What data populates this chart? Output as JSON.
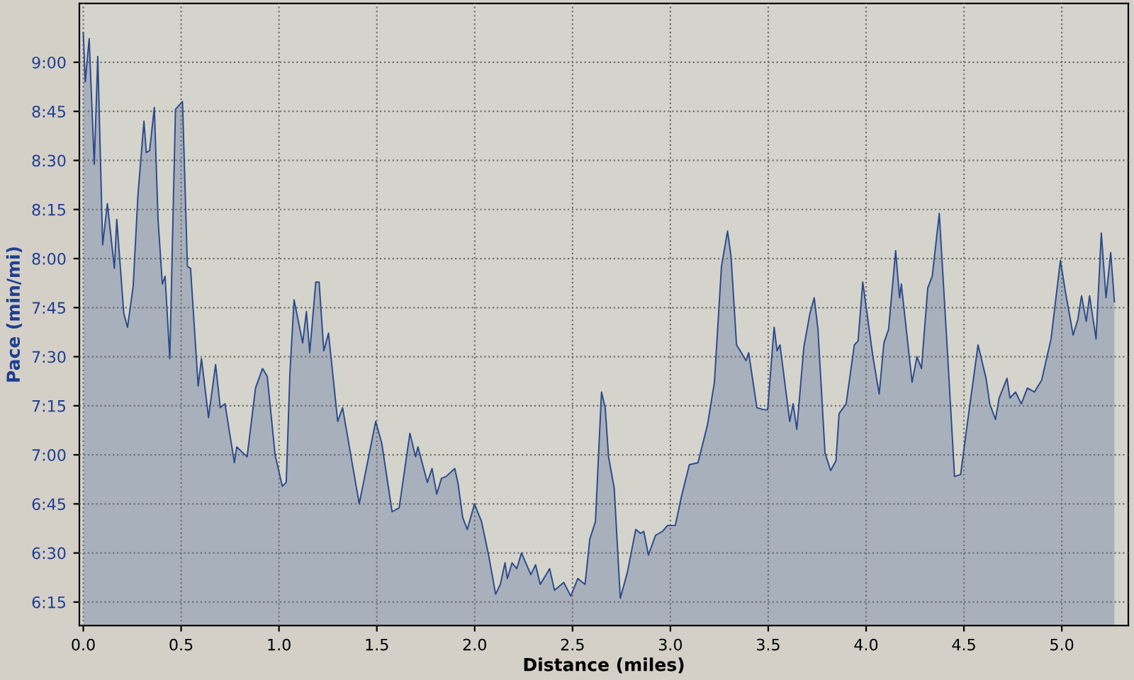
{
  "chart_data": {
    "type": "area",
    "xlabel": "Distance (miles)",
    "ylabel": "Pace (min/mi)",
    "series": [
      {
        "color": "#2c4a8a",
        "x": [
          0.0,
          0.01,
          0.03,
          0.056,
          0.074,
          0.099,
          0.123,
          0.159,
          0.171,
          0.207,
          0.226,
          0.255,
          0.279,
          0.31,
          0.322,
          0.339,
          0.363,
          0.382,
          0.404,
          0.418,
          0.442,
          0.471,
          0.507,
          0.532,
          0.548,
          0.587,
          0.604,
          0.64,
          0.676,
          0.7,
          0.724,
          0.772,
          0.784,
          0.837,
          0.88,
          0.916,
          0.94,
          0.98,
          1.017,
          1.037,
          1.056,
          1.077,
          1.121,
          1.14,
          1.157,
          1.188,
          1.205,
          1.229,
          1.253,
          1.3,
          1.325,
          1.41,
          1.494,
          1.525,
          1.578,
          1.614,
          1.669,
          1.698,
          1.71,
          1.758,
          1.782,
          1.806,
          1.83,
          1.854,
          1.898,
          1.914,
          1.939,
          1.962,
          1.999,
          2.035,
          2.071,
          2.107,
          2.131,
          2.155,
          2.167,
          2.191,
          2.215,
          2.239,
          2.287,
          2.311,
          2.335,
          2.383,
          2.408,
          2.455,
          2.491,
          2.527,
          2.564,
          2.588,
          2.617,
          2.648,
          2.667,
          2.684,
          2.713,
          2.744,
          2.78,
          2.823,
          2.848,
          2.864,
          2.888,
          2.924,
          2.96,
          2.985,
          3.025,
          3.057,
          3.097,
          3.141,
          3.189,
          3.225,
          3.261,
          3.292,
          3.31,
          3.338,
          3.357,
          3.386,
          3.4,
          3.442,
          3.477,
          3.497,
          3.53,
          3.545,
          3.56,
          3.61,
          3.627,
          3.646,
          3.682,
          3.713,
          3.735,
          3.754,
          3.79,
          3.819,
          3.846,
          3.862,
          3.898,
          3.94,
          3.959,
          3.983,
          4.035,
          4.067,
          4.091,
          4.115,
          4.151,
          4.171,
          4.18,
          4.235,
          4.26,
          4.283,
          4.315,
          4.338,
          4.374,
          4.416,
          4.452,
          4.483,
          4.512,
          4.572,
          4.613,
          4.632,
          4.661,
          4.68,
          4.72,
          4.735,
          4.764,
          4.793,
          4.824,
          4.86,
          4.897,
          4.945,
          4.993,
          5.017,
          5.058,
          5.082,
          5.101,
          5.125,
          5.142,
          5.175,
          5.202,
          5.226,
          5.25,
          5.269
        ],
        "values": [
          9.15,
          8.9,
          9.12,
          8.48,
          9.03,
          8.07,
          8.28,
          7.95,
          8.2,
          7.72,
          7.65,
          7.86,
          8.32,
          8.7,
          8.54,
          8.55,
          8.77,
          8.2,
          7.87,
          7.91,
          7.49,
          8.76,
          8.8,
          7.96,
          7.95,
          7.35,
          7.49,
          7.19,
          7.46,
          7.24,
          7.26,
          6.96,
          7.04,
          6.99,
          7.34,
          7.44,
          7.4,
          7.0,
          6.84,
          6.86,
          7.42,
          7.79,
          7.57,
          7.73,
          7.52,
          7.88,
          7.88,
          7.53,
          7.62,
          7.17,
          7.24,
          6.75,
          7.17,
          7.06,
          6.71,
          6.73,
          7.11,
          6.99,
          7.04,
          6.86,
          6.93,
          6.8,
          6.88,
          6.89,
          6.93,
          6.86,
          6.68,
          6.62,
          6.75,
          6.66,
          6.49,
          6.29,
          6.34,
          6.45,
          6.37,
          6.45,
          6.42,
          6.5,
          6.39,
          6.44,
          6.34,
          6.42,
          6.31,
          6.35,
          6.28,
          6.37,
          6.34,
          6.57,
          6.66,
          7.32,
          7.24,
          6.99,
          6.83,
          6.27,
          6.4,
          6.62,
          6.6,
          6.61,
          6.49,
          6.59,
          6.61,
          6.64,
          6.64,
          6.79,
          6.95,
          6.96,
          7.15,
          7.37,
          7.96,
          8.14,
          8.01,
          7.56,
          7.53,
          7.48,
          7.52,
          7.24,
          7.23,
          7.23,
          7.65,
          7.53,
          7.56,
          7.17,
          7.26,
          7.13,
          7.55,
          7.72,
          7.8,
          7.64,
          7.01,
          6.92,
          6.97,
          7.21,
          7.26,
          7.56,
          7.58,
          7.88,
          7.5,
          7.31,
          7.57,
          7.64,
          8.04,
          7.8,
          7.87,
          7.37,
          7.5,
          7.44,
          7.85,
          7.91,
          8.23,
          7.52,
          6.89,
          6.9,
          7.12,
          7.56,
          7.39,
          7.26,
          7.18,
          7.29,
          7.39,
          7.29,
          7.32,
          7.26,
          7.34,
          7.32,
          7.38,
          7.59,
          7.99,
          7.84,
          7.61,
          7.69,
          7.81,
          7.68,
          7.81,
          7.59,
          8.13,
          7.8,
          8.03,
          7.78
        ]
      }
    ],
    "xlim": [
      -0.02,
      5.34
    ],
    "xticks": [
      {
        "value": 0,
        "label": "0.0"
      },
      0.5,
      {
        "value": 1,
        "label": "1.0"
      },
      1.5,
      {
        "value": 2,
        "label": "2.0"
      },
      2.5,
      {
        "value": 3,
        "label": "3.0"
      },
      3.5,
      {
        "value": 4,
        "label": "4.0"
      },
      4.5,
      {
        "value": 5,
        "label": "5.0"
      }
    ],
    "ylim": [
      6.13,
      9.3
    ],
    "yticks": [
      {
        "value": 6.25,
        "label": "6:15"
      },
      {
        "value": 6.5,
        "label": "6:30"
      },
      {
        "value": 6.75,
        "label": "6:45"
      },
      {
        "value": 7.0,
        "label": "7:00"
      },
      {
        "value": 7.25,
        "label": "7:15"
      },
      {
        "value": 7.5,
        "label": "7:30"
      },
      {
        "value": 7.75,
        "label": "7:45"
      },
      {
        "value": 8.0,
        "label": "8:00"
      },
      {
        "value": 8.25,
        "label": "8:15"
      },
      {
        "value": 8.5,
        "label": "8:30"
      },
      {
        "value": 8.75,
        "label": "8:45"
      },
      {
        "value": 9.0,
        "label": "9:00"
      }
    ],
    "grid": true,
    "line_style": "solid"
  }
}
